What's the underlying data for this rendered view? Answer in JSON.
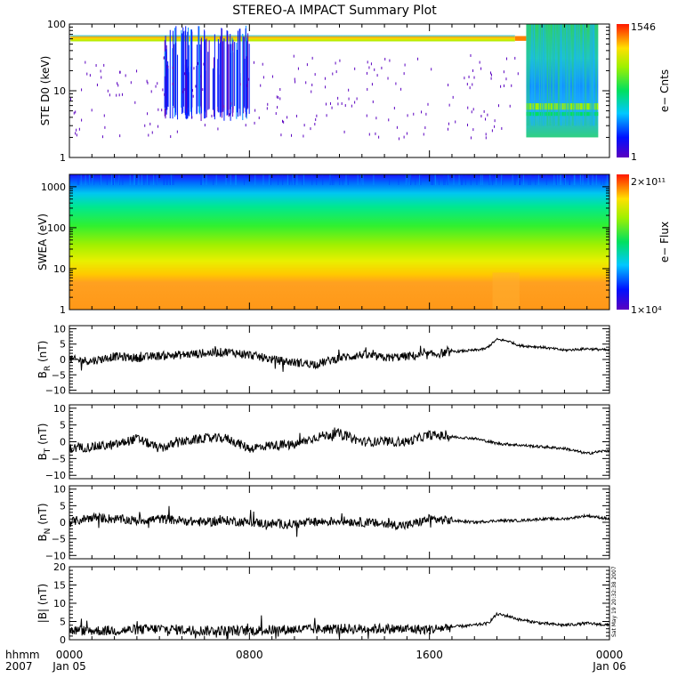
{
  "chart_data": {
    "type": "multi-panel time series",
    "title": "STEREO-A IMPACT Summary Plot",
    "x": {
      "tick_labels": [
        "0000",
        "0800",
        "1600",
        "0000"
      ],
      "tick_hours": [
        0,
        8,
        16,
        24
      ],
      "date_labels": [
        "Jan 05",
        "",
        "",
        "Jan 06"
      ],
      "row_labels": [
        "hhmm",
        "2007"
      ],
      "xlim_hours": [
        0,
        24
      ]
    },
    "panels": [
      {
        "type": "spectrogram",
        "ylabel": "STE D0 (keV)",
        "yscale": "log",
        "ylim": [
          1,
          100
        ],
        "yticks": [
          "1",
          "10",
          "100"
        ],
        "colorbar": {
          "label": "e− Cnts",
          "max": "1546",
          "min": "1",
          "scale": "log"
        },
        "features": {
          "top_band_keV": [
            55,
            68
          ],
          "burst_hours": [
            4.2,
            8.0
          ],
          "right_block_hours": [
            20.3,
            23.5
          ],
          "right_block_keV": [
            2,
            100
          ]
        }
      },
      {
        "type": "spectrogram",
        "ylabel": "SWEA (eV)",
        "yscale": "log",
        "ylim": [
          1,
          2000
        ],
        "yticks": [
          "1",
          "10",
          "100",
          "1000"
        ],
        "colorbar": {
          "label": "e− Flux",
          "max": "2×10¹¹",
          "min": "1×10⁴",
          "scale": "log"
        }
      },
      {
        "type": "line",
        "ylabel_main": "B",
        "ylabel_sub": "R",
        "ylabel_unit": " (nT)",
        "ylim": [
          -11,
          11
        ],
        "yticks": [
          "10",
          "5",
          "0",
          "−5",
          "−10"
        ],
        "ytick_values": [
          10,
          5,
          0,
          -5,
          -10
        ],
        "key_points": [
          [
            0,
            0
          ],
          [
            1,
            -0.5
          ],
          [
            2,
            1
          ],
          [
            3,
            0.5
          ],
          [
            4,
            1.2
          ],
          [
            5,
            1.5
          ],
          [
            6,
            2
          ],
          [
            7,
            2.5
          ],
          [
            8,
            1.5
          ],
          [
            9,
            0
          ],
          [
            10,
            -1
          ],
          [
            11,
            -1.5
          ],
          [
            12,
            0.5
          ],
          [
            13,
            1.5
          ],
          [
            14,
            0.5
          ],
          [
            15,
            1
          ],
          [
            16,
            1.5
          ],
          [
            17,
            2.5
          ],
          [
            18,
            3
          ],
          [
            18.5,
            3.5
          ],
          [
            19,
            6.5
          ],
          [
            19.5,
            6
          ],
          [
            20,
            4.5
          ],
          [
            21,
            4
          ],
          [
            22,
            3
          ],
          [
            23,
            3.5
          ],
          [
            24,
            3
          ]
        ]
      },
      {
        "type": "line",
        "ylabel_main": "B",
        "ylabel_sub": "T",
        "ylabel_unit": " (nT)",
        "ylim": [
          -11,
          11
        ],
        "yticks": [
          "10",
          "5",
          "0",
          "−5",
          "−10"
        ],
        "ytick_values": [
          10,
          5,
          0,
          -5,
          -10
        ],
        "key_points": [
          [
            0,
            -2
          ],
          [
            1,
            -1.5
          ],
          [
            2,
            -1
          ],
          [
            3,
            1
          ],
          [
            4,
            -2
          ],
          [
            5,
            0
          ],
          [
            6,
            1
          ],
          [
            7,
            1
          ],
          [
            8,
            -2
          ],
          [
            9,
            -1
          ],
          [
            10,
            -1
          ],
          [
            11,
            1.5
          ],
          [
            12,
            2.5
          ],
          [
            13,
            0
          ],
          [
            14,
            0
          ],
          [
            15,
            0
          ],
          [
            16,
            2
          ],
          [
            17,
            1.5
          ],
          [
            18,
            1
          ],
          [
            19,
            -0.5
          ],
          [
            20,
            -1
          ],
          [
            21,
            -1.5
          ],
          [
            22,
            -2
          ],
          [
            23,
            -3.5
          ],
          [
            24,
            -2.5
          ]
        ]
      },
      {
        "type": "line",
        "ylabel_main": "B",
        "ylabel_sub": "N",
        "ylabel_unit": " (nT)",
        "ylim": [
          -11,
          11
        ],
        "yticks": [
          "10",
          "5",
          "0",
          "−5",
          "−10"
        ],
        "ytick_values": [
          10,
          5,
          0,
          -5,
          -10
        ],
        "key_points": [
          [
            0,
            0
          ],
          [
            1,
            1.5
          ],
          [
            2,
            1
          ],
          [
            3,
            0.5
          ],
          [
            4,
            1
          ],
          [
            5,
            0.5
          ],
          [
            6,
            0
          ],
          [
            7,
            0.5
          ],
          [
            8,
            0
          ],
          [
            9,
            -0.5
          ],
          [
            10,
            -0.5
          ],
          [
            11,
            0
          ],
          [
            12,
            0.5
          ],
          [
            13,
            0
          ],
          [
            14,
            -0.5
          ],
          [
            15,
            -1
          ],
          [
            16,
            1
          ],
          [
            17,
            0.5
          ],
          [
            18,
            0
          ],
          [
            19,
            0.5
          ],
          [
            20,
            0.5
          ],
          [
            21,
            1
          ],
          [
            22,
            1
          ],
          [
            23,
            2
          ],
          [
            24,
            1
          ]
        ]
      },
      {
        "type": "line",
        "ylabel_main": "|B|",
        "ylabel_sub": "",
        "ylabel_unit": " (nT)",
        "ylim": [
          0,
          20
        ],
        "yticks": [
          "20",
          "15",
          "10",
          "5",
          "0"
        ],
        "ytick_values": [
          20,
          15,
          10,
          5,
          0
        ],
        "key_points": [
          [
            0,
            2.5
          ],
          [
            2,
            2.5
          ],
          [
            4,
            3
          ],
          [
            6,
            2.5
          ],
          [
            8,
            2.5
          ],
          [
            10,
            2.8
          ],
          [
            12,
            3
          ],
          [
            14,
            3
          ],
          [
            16,
            2.8
          ],
          [
            17,
            3.5
          ],
          [
            18,
            4
          ],
          [
            18.6,
            4.5
          ],
          [
            19,
            7
          ],
          [
            19.5,
            6.5
          ],
          [
            20,
            5.5
          ],
          [
            21,
            4.5
          ],
          [
            22,
            4
          ],
          [
            23,
            4.5
          ],
          [
            24,
            4
          ]
        ]
      }
    ],
    "stamp": "Sat May 19 20:32:38 2007"
  }
}
